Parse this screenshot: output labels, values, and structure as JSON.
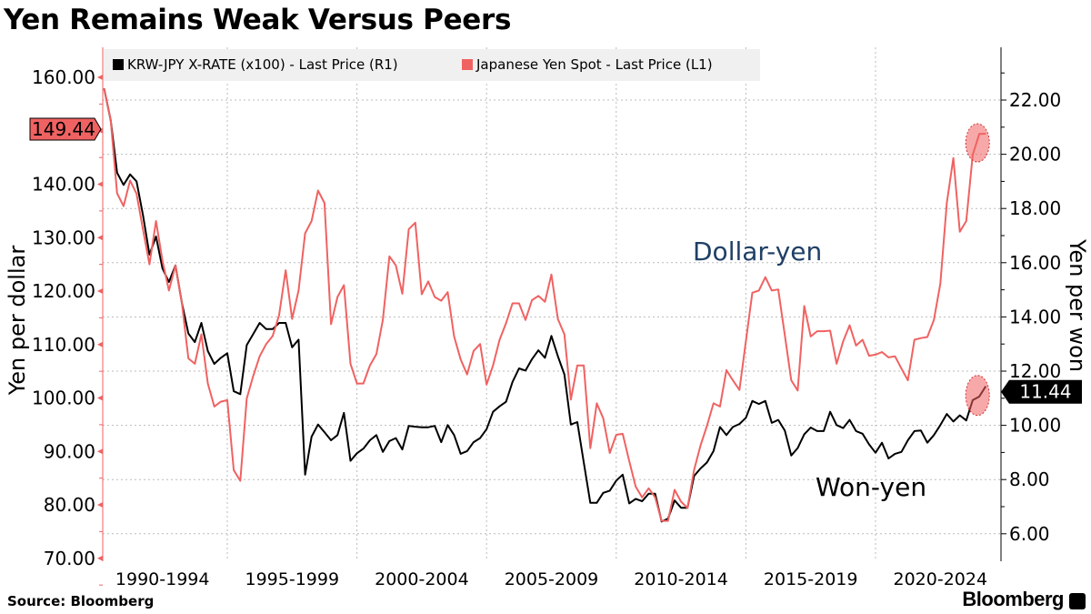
{
  "title": "Yen Remains Weak Versus Peers",
  "source": "Source: Bloomberg",
  "brand": "Bloomberg",
  "colors": {
    "won_yen": "#000000",
    "dollar_yen": "#f06262",
    "annotation_blue": "#1f3f66",
    "legend_bg": "#f0f0f0"
  },
  "chart_data": {
    "type": "line",
    "title": "Yen Remains Weak Versus Peers",
    "x_start": 1990.25,
    "x_step": 0.25,
    "x_tick_labels": [
      "1990-1994",
      "1995-1999",
      "2000-2004",
      "2005-2009",
      "2010-2014",
      "2015-2019",
      "2020-2024"
    ],
    "x_range": [
      1990,
      2024.9
    ],
    "left_axis": {
      "label": "Yen per dollar",
      "range": [
        70,
        160
      ],
      "ticks": [
        "160.00",
        "150.00",
        "140.00",
        "130.00",
        "120.00",
        "110.00",
        "100.00",
        "90.00",
        "80.00",
        "70.00"
      ],
      "tick_values": [
        160,
        150,
        140,
        130,
        120,
        110,
        100,
        90,
        80,
        70
      ]
    },
    "right_axis": {
      "label": "Yen per won",
      "range": [
        6,
        22
      ],
      "ticks": [
        "22.00",
        "20.00",
        "18.00",
        "16.00",
        "14.00",
        "12.00",
        "10.00",
        "8.00",
        "6.00"
      ],
      "tick_values": [
        22,
        20,
        18,
        16,
        14,
        12,
        10,
        8,
        6
      ]
    },
    "grid": true,
    "legend_position": "top",
    "legend": [
      "KRW-JPY X-RATE (x100) - Last Price (R1)",
      "Japanese Yen Spot - Last Price (L1)"
    ],
    "annotations": [
      "Dollar-yen",
      "Won-yen"
    ],
    "last_values": {
      "dollar_yen": "149.44",
      "won_yen": "11.44"
    },
    "series": [
      {
        "name": "KRW-JPY X-RATE (x100) - Last Price (R1)",
        "axis": "right",
        "values": [
          22.43,
          21.27,
          19.32,
          18.87,
          19.26,
          19.0,
          17.75,
          16.3,
          16.97,
          15.79,
          15.29,
          15.9,
          14.51,
          13.39,
          13.07,
          13.78,
          12.74,
          12.27,
          12.49,
          12.66,
          11.26,
          11.15,
          12.96,
          13.37,
          13.78,
          13.55,
          13.55,
          13.78,
          13.78,
          12.88,
          13.16,
          8.18,
          9.58,
          10.03,
          9.75,
          9.45,
          9.64,
          10.46,
          8.69,
          8.97,
          9.14,
          9.45,
          9.64,
          9.02,
          9.42,
          9.53,
          9.11,
          9.98,
          9.95,
          9.93,
          9.93,
          9.98,
          9.38,
          10.01,
          9.64,
          8.95,
          9.05,
          9.38,
          9.53,
          9.86,
          10.5,
          10.7,
          10.87,
          11.6,
          12.1,
          12.02,
          12.44,
          12.77,
          12.49,
          13.3,
          12.55,
          11.88,
          10.03,
          10.12,
          8.63,
          7.14,
          7.14,
          7.51,
          7.59,
          7.96,
          8.18,
          7.12,
          7.29,
          7.2,
          7.48,
          7.48,
          6.45,
          6.56,
          7.23,
          6.96,
          6.96,
          8.13,
          8.41,
          8.63,
          9.05,
          9.94,
          9.64,
          9.94,
          10.05,
          10.28,
          10.9,
          10.79,
          10.9,
          10.09,
          10.2,
          9.81,
          8.89,
          9.16,
          9.67,
          9.92,
          9.79,
          9.79,
          10.5,
          10.01,
          9.9,
          10.2,
          9.79,
          9.69,
          9.3,
          8.99,
          9.36,
          8.78,
          8.95,
          9.02,
          9.45,
          9.79,
          9.81,
          9.36,
          9.64,
          10.01,
          10.42,
          10.14,
          10.37,
          10.18,
          10.93,
          11.06,
          11.44
        ]
      },
      {
        "name": "Japanese Yen Spot - Last Price (L1)",
        "axis": "left",
        "values": [
          157.9,
          152.1,
          138.3,
          135.9,
          140.7,
          138.2,
          131.5,
          125.0,
          133.1,
          125.7,
          120.1,
          124.8,
          117.7,
          107.4,
          106.4,
          111.9,
          102.7,
          98.4,
          99.3,
          99.6,
          86.5,
          84.5,
          99.9,
          104.1,
          107.8,
          110.1,
          111.6,
          115.5,
          123.9,
          114.8,
          120.1,
          130.8,
          133.1,
          138.8,
          136.5,
          113.8,
          118.9,
          121.1,
          106.4,
          102.7,
          102.7,
          106.1,
          108.2,
          114.6,
          126.5,
          124.8,
          119.5,
          131.6,
          132.8,
          119.4,
          121.8,
          118.9,
          118.2,
          119.8,
          111.5,
          107.2,
          104.4,
          108.8,
          110.1,
          102.5,
          106.1,
          110.9,
          114.0,
          117.7,
          117.7,
          114.6,
          118.3,
          119.1,
          118.0,
          123.1,
          114.8,
          111.9,
          99.7,
          106.1,
          106.1,
          90.6,
          99.0,
          96.2,
          89.7,
          93.1,
          93.3,
          88.2,
          83.4,
          81.4,
          83.1,
          81.4,
          77.0,
          77.0,
          82.8,
          80.6,
          79.4,
          86.5,
          91.1,
          94.8,
          99.0,
          98.4,
          105.2,
          103.3,
          101.5,
          110.6,
          119.7,
          120.1,
          122.6,
          120.1,
          120.3,
          111.8,
          103.3,
          101.4,
          117.2,
          111.5,
          112.5,
          112.5,
          112.6,
          106.4,
          110.6,
          113.6,
          109.8,
          110.9,
          107.9,
          108.1,
          108.6,
          107.6,
          107.8,
          105.5,
          103.3,
          110.9,
          111.2,
          111.4,
          114.6,
          121.4,
          136.5,
          144.9,
          131.1,
          133.1,
          145.5,
          149.4,
          149.44
        ]
      }
    ]
  }
}
